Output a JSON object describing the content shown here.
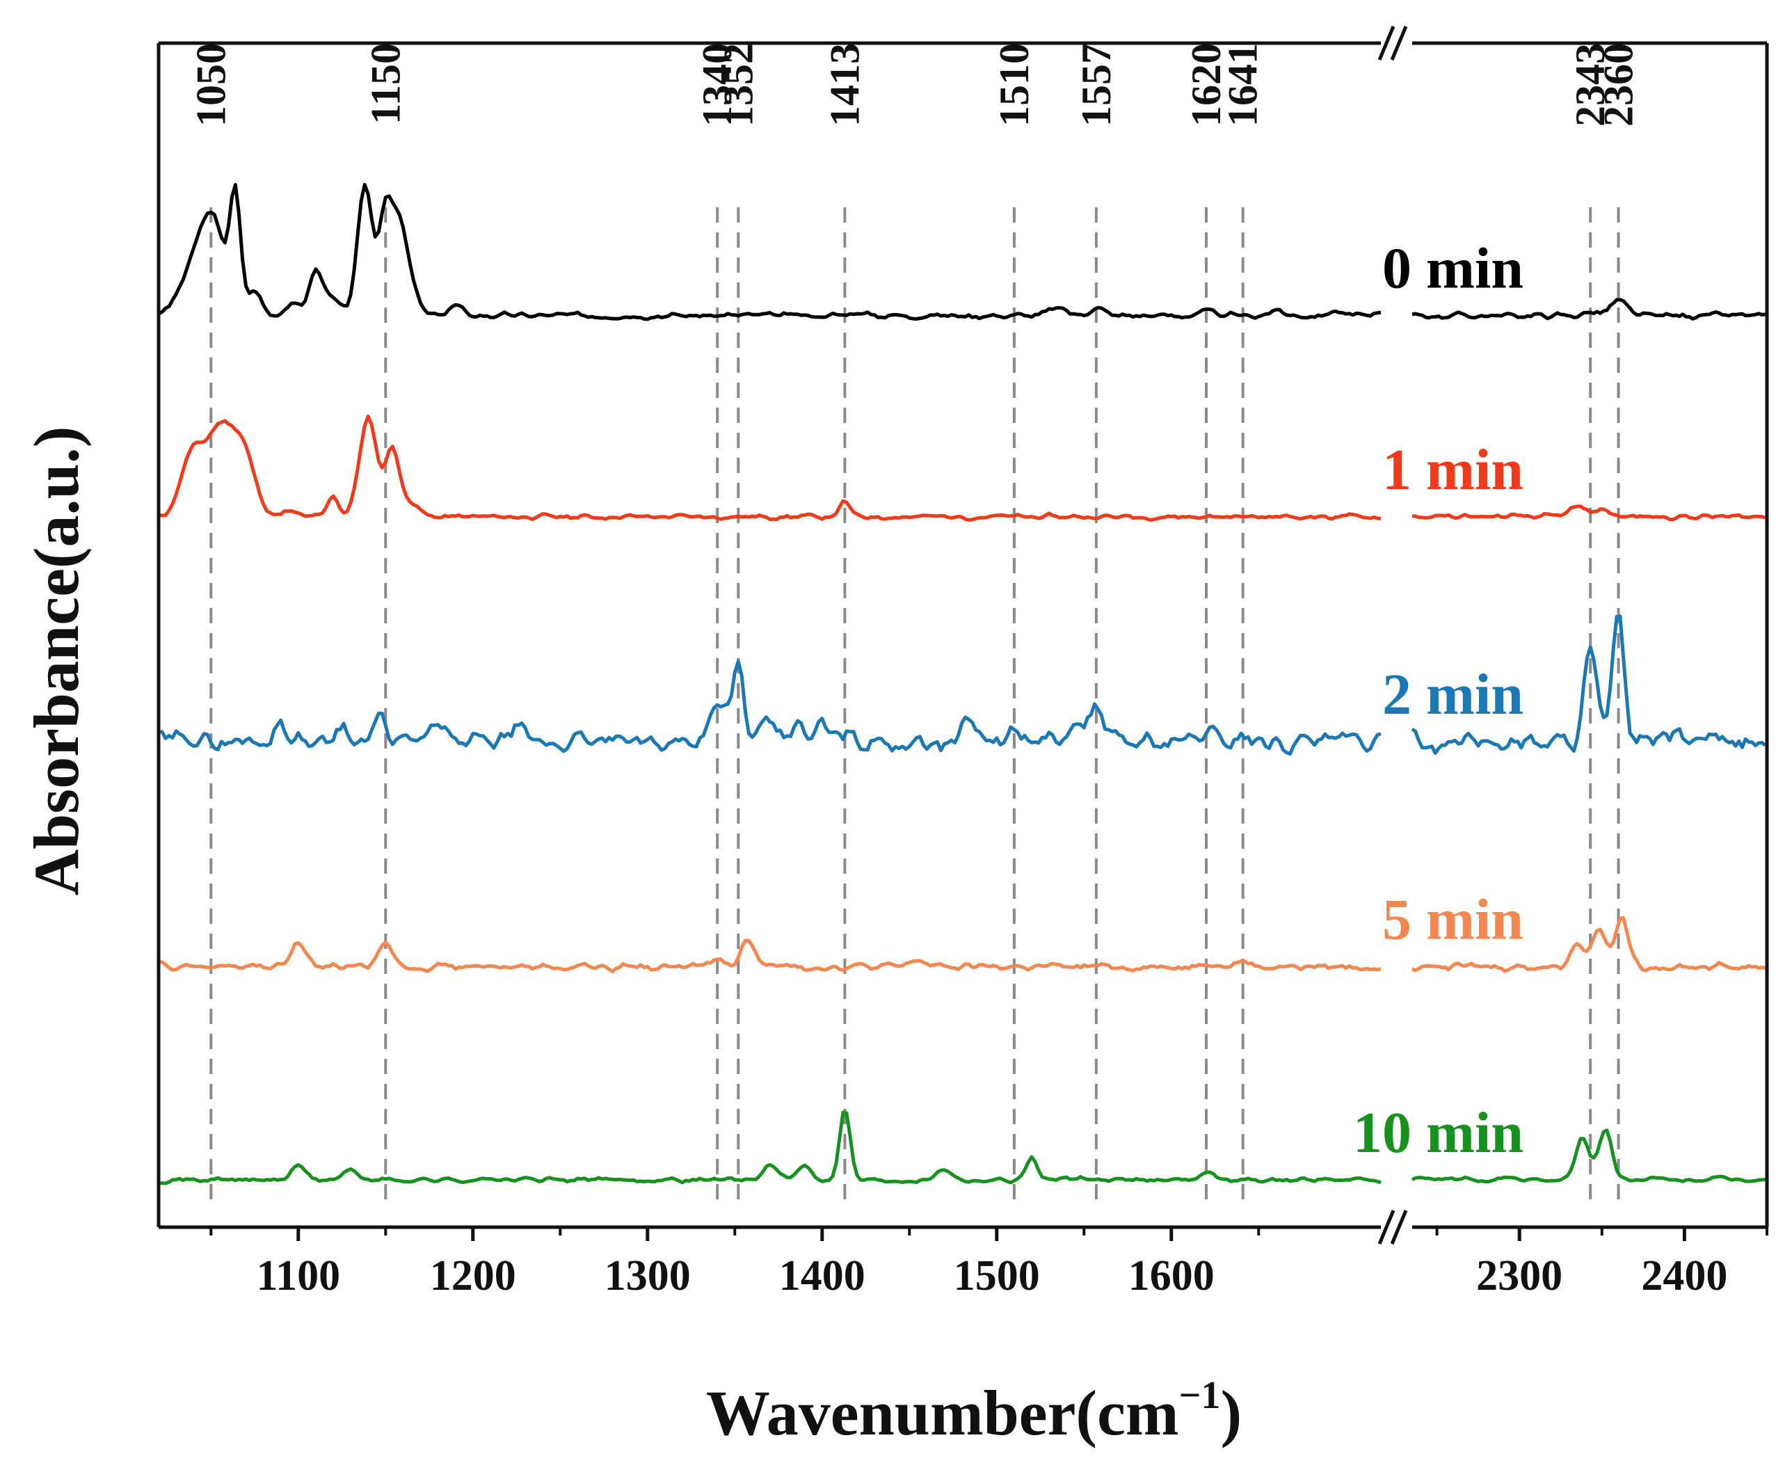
{
  "chart_data": {
    "type": "line",
    "title": "",
    "xlabel": "Wavenumber(cm",
    "xlabel_sup": "−1",
    "xlabel_close": ")",
    "ylabel": "Absorbance(a.u.)",
    "x_segments": [
      {
        "range": [
          1020,
          1720
        ],
        "ticks": [
          1100,
          1200,
          1300,
          1400,
          1500,
          1600
        ],
        "tick_labels": [
          "1100",
          "1200",
          "1300",
          "1400",
          "1500",
          "1600"
        ]
      },
      {
        "range": [
          2235,
          2450
        ],
        "ticks": [
          2300,
          2400
        ],
        "tick_labels": [
          "2300",
          "2400"
        ]
      }
    ],
    "axis_break": "//",
    "ylim": [
      0,
      100
    ],
    "grid": false,
    "peak_markers": [
      {
        "x": 1050,
        "label": "1050"
      },
      {
        "x": 1150,
        "label": "1150"
      },
      {
        "x": 1340,
        "label": "1340"
      },
      {
        "x": 1352,
        "label": "1352"
      },
      {
        "x": 1413,
        "label": "1413"
      },
      {
        "x": 1510,
        "label": "1510"
      },
      {
        "x": 1557,
        "label": "1557"
      },
      {
        "x": 1620,
        "label": "1620"
      },
      {
        "x": 1641,
        "label": "1641"
      },
      {
        "x": 2343,
        "label": "2343"
      },
      {
        "x": 2360,
        "label": "2360"
      }
    ],
    "series": [
      {
        "name": "0 min",
        "label": "0 min",
        "color": "#000000",
        "baseline": 77,
        "noise": 0.35,
        "seed": 3,
        "peaks": [
          [
            1036,
            2.0,
            7
          ],
          [
            1050,
            8.4,
            8
          ],
          [
            1064,
            9.0,
            3
          ],
          [
            1075,
            2.0,
            4
          ],
          [
            1096,
            1.0,
            4
          ],
          [
            1110,
            3.8,
            4
          ],
          [
            1120,
            1.5,
            4
          ],
          [
            1138,
            11.0,
            4
          ],
          [
            1150,
            9.0,
            4
          ],
          [
            1158,
            7.0,
            4
          ],
          [
            1165,
            2.0,
            4
          ],
          [
            1190,
            0.8,
            4
          ],
          [
            1420,
            0.3,
            4
          ],
          [
            1535,
            0.6,
            5
          ],
          [
            1557,
            0.7,
            4
          ],
          [
            1620,
            0.3,
            4
          ],
          [
            1660,
            0.4,
            4
          ],
          [
            1695,
            0.4,
            4
          ],
          [
            2360,
            1.2,
            5
          ],
          [
            2343,
            0.3,
            4
          ]
        ]
      },
      {
        "name": "1 min",
        "label": "1 min",
        "color": "#f03a1a",
        "baseline": 60,
        "noise": 0.3,
        "seed": 11,
        "peaks": [
          [
            1038,
            4.0,
            6
          ],
          [
            1056,
            7.8,
            10
          ],
          [
            1070,
            3.0,
            6
          ],
          [
            1095,
            0.4,
            4
          ],
          [
            1120,
            1.8,
            3
          ],
          [
            1140,
            8.3,
            5
          ],
          [
            1154,
            5.8,
            4
          ],
          [
            1165,
            1.2,
            4
          ],
          [
            1413,
            1.2,
            3
          ],
          [
            2335,
            0.8,
            5
          ],
          [
            2350,
            0.6,
            5
          ]
        ]
      },
      {
        "name": "2 min",
        "label": "2 min",
        "color": "#1a78b4",
        "baseline": 41,
        "noise": 1.2,
        "seed": 29,
        "peaks": [
          [
            1036,
            1.0,
            3
          ],
          [
            1090,
            1.6,
            4
          ],
          [
            1125,
            1.5,
            4
          ],
          [
            1147,
            2.0,
            3
          ],
          [
            1180,
            1.2,
            4
          ],
          [
            1225,
            0.8,
            4
          ],
          [
            1340,
            3.2,
            5
          ],
          [
            1352,
            6.5,
            3
          ],
          [
            1370,
            1.5,
            4
          ],
          [
            1385,
            1.6,
            3
          ],
          [
            1400,
            1.5,
            3
          ],
          [
            1413,
            1.0,
            4
          ],
          [
            1485,
            1.8,
            4
          ],
          [
            1510,
            0.8,
            4
          ],
          [
            1545,
            1.3,
            4
          ],
          [
            1557,
            3.0,
            4
          ],
          [
            1620,
            0.8,
            4
          ],
          [
            1641,
            0.7,
            4
          ],
          [
            2343,
            7.5,
            4
          ],
          [
            2360,
            10.5,
            3.5
          ],
          [
            2395,
            0.8,
            4
          ]
        ]
      },
      {
        "name": "5 min",
        "label": "5 min",
        "color": "#f4874f",
        "baseline": 22,
        "noise": 0.45,
        "seed": 47,
        "peaks": [
          [
            1100,
            2.0,
            4
          ],
          [
            1150,
            2.2,
            4
          ],
          [
            1340,
            0.8,
            3
          ],
          [
            1358,
            2.3,
            4
          ],
          [
            1455,
            0.6,
            4
          ],
          [
            1620,
            0.5,
            4
          ],
          [
            1641,
            0.5,
            4
          ],
          [
            2335,
            2.0,
            4
          ],
          [
            2348,
            3.5,
            4
          ],
          [
            2362,
            4.0,
            4
          ]
        ]
      },
      {
        "name": "10 min",
        "label": "10 min",
        "color": "#16921e",
        "baseline": 4,
        "noise": 0.3,
        "seed": 71,
        "peaks": [
          [
            1100,
            1.2,
            4
          ],
          [
            1130,
            0.8,
            4
          ],
          [
            1370,
            1.2,
            4
          ],
          [
            1390,
            1.3,
            4
          ],
          [
            1413,
            6.0,
            3
          ],
          [
            1470,
            1.0,
            4
          ],
          [
            1520,
            2.0,
            3
          ],
          [
            1620,
            0.7,
            4
          ],
          [
            2338,
            3.6,
            4
          ],
          [
            2352,
            4.2,
            4
          ]
        ]
      }
    ]
  }
}
